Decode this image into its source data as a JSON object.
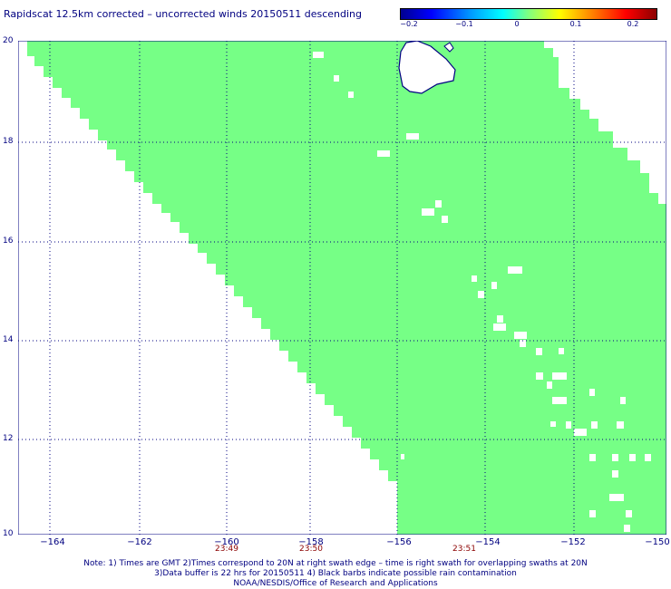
{
  "title": "Rapidscat 12.5km corrected – uncorrected winds 20150511 descending",
  "colorbar": {
    "ticks": [
      "−0.2",
      "−0.1",
      "0",
      "0.1",
      "0.2"
    ],
    "colors": [
      "#000090",
      "#00ffff",
      "#80ff80",
      "#ffff00",
      "#8b0000"
    ]
  },
  "map": {
    "lat_labels": [
      "20",
      "18",
      "16",
      "14",
      "12",
      "10"
    ],
    "lon_labels": [
      "−164",
      "−162",
      "−160",
      "−158",
      "−156",
      "−154",
      "−152",
      "−150"
    ],
    "time_labels": [
      "23:49",
      "23:50",
      "23:51"
    ],
    "swath_color": "#76ff86",
    "coast_color": "#000080",
    "grid_color": "#000080",
    "value_shown": "0"
  },
  "notes": [
    "Note: 1) Times are GMT 2)Times correspond to 20N at right swath edge – time is right swath for overlapping swaths at 20N",
    "3)Data buffer is 22 hrs for 20150511 4) Black barbs indicate possible rain contamination",
    "NOAA/NESDIS/Office of Research and Applications"
  ]
}
